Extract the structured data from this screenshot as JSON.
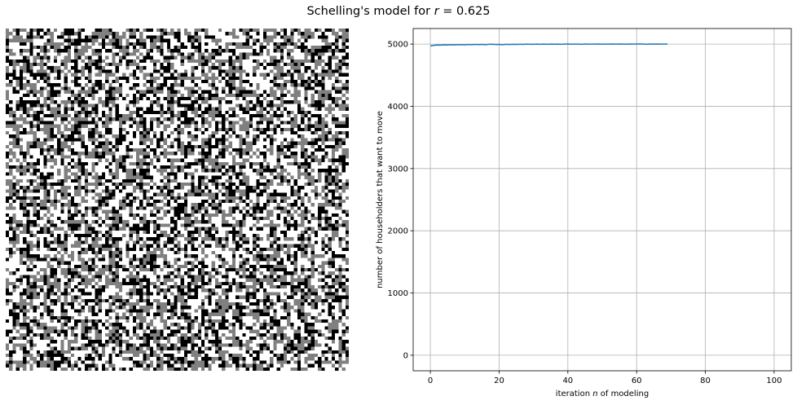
{
  "title": {
    "prefix": "Schelling's model for ",
    "variable": "r",
    "suffix": " = 0.625"
  },
  "grid_image": {
    "rows": 100,
    "cols": 100,
    "colors": [
      "#ffffff",
      "#808080",
      "#000000"
    ],
    "description_note": ""
  },
  "chart_data": [
    {
      "type": "image",
      "colors": [
        "#ffffff",
        "#808080",
        "#000000"
      ]
    },
    {
      "type": "line",
      "title": "",
      "xlabel": "iteration n of modeling",
      "xlabel_parts": [
        "iteration ",
        "n",
        " of modeling"
      ],
      "ylabel": "number of householders that want to move",
      "xlim": [
        -5,
        105
      ],
      "ylim": [
        -250,
        5250
      ],
      "xticks": [
        0,
        20,
        40,
        60,
        80,
        100
      ],
      "yticks": [
        0,
        1000,
        2000,
        3000,
        4000,
        5000
      ],
      "grid": true,
      "line_color": "#1f77b4",
      "series": [
        {
          "x": [
            0,
            1,
            2,
            3,
            4,
            5,
            6,
            7,
            8,
            9,
            10,
            11,
            12,
            13,
            14,
            15,
            16,
            17,
            18,
            19,
            20,
            21,
            22,
            23,
            24,
            25,
            26,
            27,
            28,
            29,
            30,
            31,
            32,
            33,
            34,
            35,
            36,
            37,
            38,
            39,
            40,
            41,
            42,
            43,
            44,
            45,
            46,
            47,
            48,
            49,
            50,
            51,
            52,
            53,
            54,
            55,
            56,
            57,
            58,
            59,
            60,
            61,
            62,
            63,
            64,
            65,
            66,
            67,
            68,
            69
          ],
          "values": [
            4970,
            4980,
            4985,
            4983,
            4988,
            4985,
            4990,
            4987,
            4992,
            4990,
            4988,
            4993,
            4990,
            4995,
            4992,
            4994,
            4990,
            4996,
            4998,
            4993,
            4995,
            4990,
            4997,
            4993,
            4996,
            4994,
            4998,
            4995,
            4999,
            4996,
            4997,
            4999,
            4996,
            5000,
            4997,
            4999,
            4998,
            5000,
            4997,
            4999,
            5001,
            4998,
            5000,
            4999,
            4997,
            5001,
            4998,
            5000,
            4999,
            5001,
            4998,
            5000,
            4999,
            5002,
            4999,
            5001,
            5000,
            4998,
            5002,
            4999,
            5001,
            5003,
            5000,
            4998,
            5002,
            5000,
            5001,
            4999,
            5000,
            5001
          ]
        }
      ]
    }
  ]
}
